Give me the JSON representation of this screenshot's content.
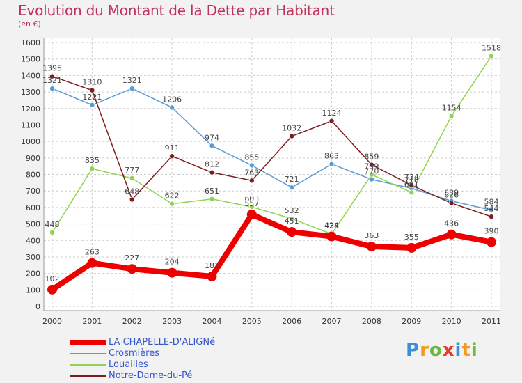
{
  "header": {
    "title": "Evolution du Montant de la Dette par Habitant",
    "subtitle": "(en €)"
  },
  "logo": {
    "letters": [
      "P",
      "r",
      "o",
      "x",
      "i",
      "t",
      "i"
    ],
    "colors": [
      "#3a8fd6",
      "#f29a1f",
      "#6cb83f",
      "#e8392f",
      "#3a8fd6",
      "#f29a1f",
      "#6cb83f"
    ]
  },
  "chart_data": {
    "type": "line",
    "title": "Evolution du Montant de la Dette par Habitant",
    "subtitle": "(en €)",
    "xlabel": "",
    "ylabel": "",
    "x": [
      "2000",
      "2001",
      "2002",
      "2003",
      "2004",
      "2005",
      "2006",
      "2007",
      "2008",
      "2009",
      "2010",
      "2011"
    ],
    "ylim": [
      0,
      1600
    ],
    "yticks": [
      "0",
      "100",
      "200",
      "300",
      "400",
      "500",
      "600",
      "700",
      "800",
      "900",
      "1000",
      "1100",
      "1200",
      "1300",
      "1400",
      "1500",
      "1600"
    ],
    "grid": true,
    "legend_position": "bottom-left",
    "series": [
      {
        "name": "LA CHAPELLE-D'ALIGNé",
        "color": "#ee0000",
        "bold": true,
        "values": [
          102,
          263,
          227,
          204,
          182,
          557,
          451,
          424,
          363,
          355,
          436,
          390
        ],
        "labels": [
          "102",
          "263",
          "227",
          "204",
          "182",
          "557",
          "451",
          "424",
          "363",
          "355",
          "436",
          "390"
        ]
      },
      {
        "name": "Crosmières",
        "color": "#5b9bd5",
        "bold": false,
        "values": [
          1321,
          1221,
          1321,
          1206,
          974,
          855,
          721,
          863,
          770,
          716,
          639,
          584
        ],
        "labels": [
          "1321",
          "1221",
          "1321",
          "1206",
          "974",
          "855",
          "721",
          "863",
          "770",
          "716",
          "639",
          "584"
        ]
      },
      {
        "name": "Louailles",
        "color": "#8fd44e",
        "bold": false,
        "values": [
          448,
          835,
          777,
          622,
          651,
          603,
          532,
          438,
          799,
          691,
          1154,
          1518
        ],
        "labels": [
          "448",
          "835",
          "777",
          "622",
          "651",
          "603",
          "532",
          "438",
          "799",
          "691",
          "1154",
          "1518"
        ]
      },
      {
        "name": "Notre-Dame-du-Pé",
        "color": "#7a1f1f",
        "bold": false,
        "values": [
          1395,
          1310,
          648,
          911,
          812,
          763,
          1032,
          1124,
          859,
          734,
          626,
          544
        ],
        "labels": [
          "1395",
          "1310",
          "648",
          "911",
          "812",
          "763",
          "1032",
          "1124",
          "859",
          "734",
          "626",
          "544"
        ]
      }
    ]
  }
}
